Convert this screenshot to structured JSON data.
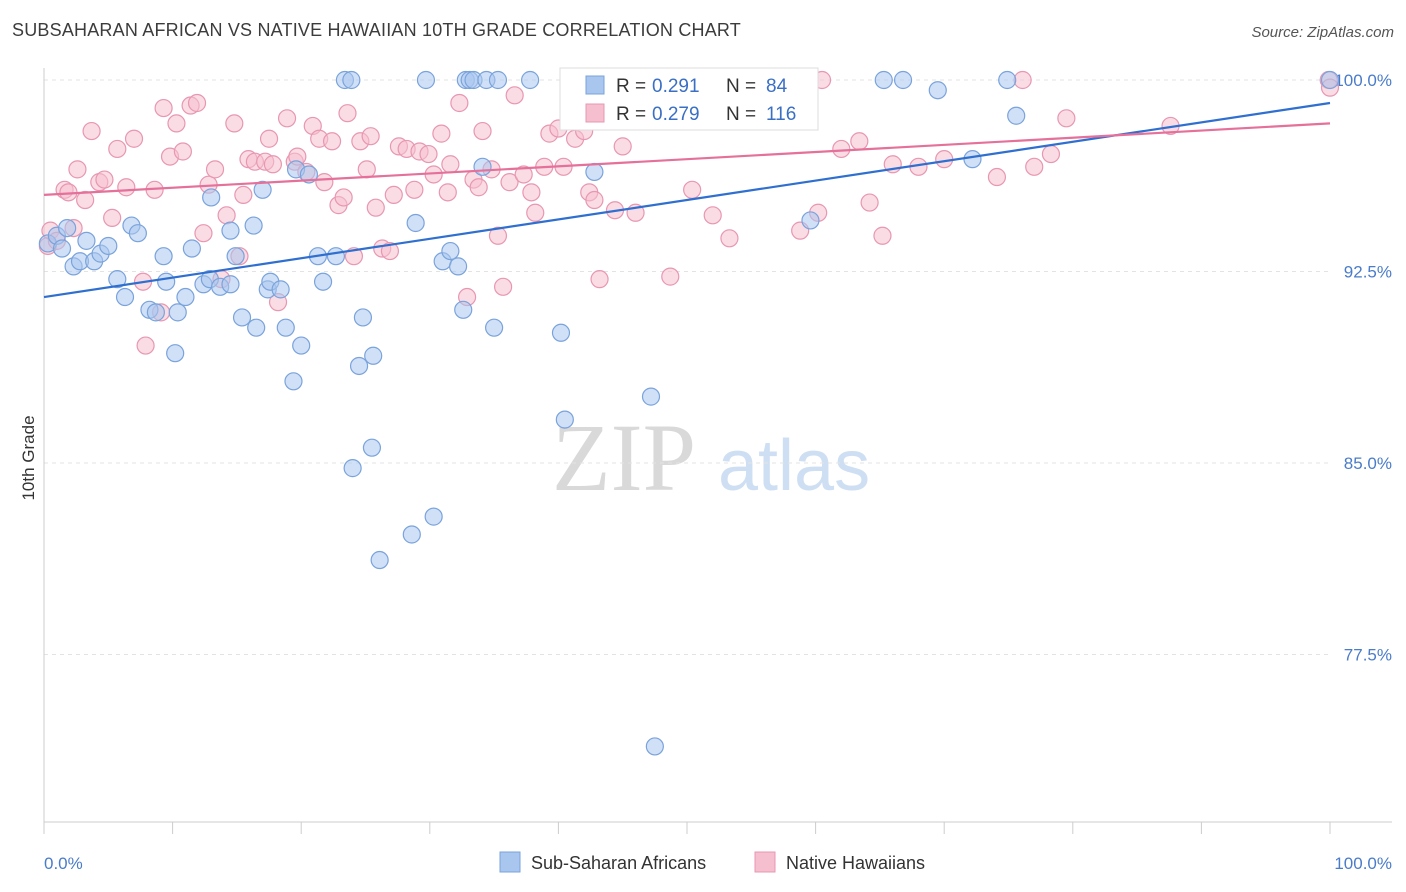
{
  "header": {
    "title": "SUBSAHARAN AFRICAN VS NATIVE HAWAIIAN 10TH GRADE CORRELATION CHART",
    "source": "Source: ZipAtlas.com"
  },
  "watermark": {
    "zip": "ZIP",
    "atlas": "atlas"
  },
  "legend": {
    "r_label": "R =",
    "n_label": "N =",
    "series_a": {
      "r": "0.291",
      "n": "84"
    },
    "series_b": {
      "r": "0.279",
      "n": "116"
    }
  },
  "bottom_legend": {
    "a": "Sub-Saharan Africans",
    "b": "Native Hawaiians"
  },
  "colors": {
    "blue_fill": "#a9c6ee",
    "blue_stroke": "#7aa3dc",
    "blue_line": "#2f6fd0",
    "pink_fill": "#f5bfd0",
    "pink_stroke": "#e897b1",
    "pink_line": "#e5709a",
    "tick_text": "#4a7cc9",
    "grid": "#e3e3e3"
  },
  "chart_data": {
    "type": "scatter",
    "title": "SUBSAHARAN AFRICAN VS NATIVE HAWAIIAN 10TH GRADE CORRELATION CHART",
    "xlabel": "",
    "ylabel": "10th Grade",
    "xlim": [
      0,
      100
    ],
    "ylim": [
      71.0,
      101.5
    ],
    "x_tick_labels": [
      "0.0%",
      "100.0%"
    ],
    "y_ticks": [
      77.5,
      85.0,
      92.5,
      100.0
    ],
    "y_tick_labels": [
      "77.5%",
      "85.0%",
      "92.5%",
      "100.0%"
    ],
    "grid": true,
    "legend_position": "top-center",
    "series": [
      {
        "name": "Sub-Saharan Africans",
        "r": 0.291,
        "n": 84,
        "trend": [
          [
            0,
            91.5
          ],
          [
            100,
            99.1
          ]
        ],
        "points": [
          [
            0.3,
            93.6
          ],
          [
            1.0,
            93.9
          ],
          [
            1.4,
            93.4
          ],
          [
            1.8,
            94.2
          ],
          [
            2.3,
            92.7
          ],
          [
            2.8,
            92.9
          ],
          [
            3.3,
            93.7
          ],
          [
            3.9,
            92.9
          ],
          [
            4.4,
            93.2
          ],
          [
            5.0,
            93.5
          ],
          [
            5.7,
            92.2
          ],
          [
            6.3,
            91.5
          ],
          [
            6.8,
            94.3
          ],
          [
            7.3,
            94.0
          ],
          [
            8.2,
            91.0
          ],
          [
            8.7,
            90.9
          ],
          [
            9.3,
            93.1
          ],
          [
            9.5,
            92.1
          ],
          [
            10.4,
            90.9
          ],
          [
            10.2,
            89.3
          ],
          [
            11.0,
            91.5
          ],
          [
            11.5,
            93.4
          ],
          [
            12.4,
            92.0
          ],
          [
            12.9,
            92.2
          ],
          [
            13.0,
            95.4
          ],
          [
            13.7,
            91.9
          ],
          [
            14.5,
            92.0
          ],
          [
            14.5,
            94.1
          ],
          [
            14.9,
            93.1
          ],
          [
            15.4,
            90.7
          ],
          [
            16.3,
            94.3
          ],
          [
            16.5,
            90.3
          ],
          [
            17.0,
            95.7
          ],
          [
            17.4,
            91.8
          ],
          [
            17.6,
            92.1
          ],
          [
            18.4,
            91.8
          ],
          [
            18.8,
            90.3
          ],
          [
            19.4,
            88.2
          ],
          [
            19.6,
            96.5
          ],
          [
            20.0,
            89.6
          ],
          [
            20.6,
            96.3
          ],
          [
            21.3,
            93.1
          ],
          [
            21.7,
            92.1
          ],
          [
            22.7,
            93.1
          ],
          [
            23.4,
            100.0
          ],
          [
            23.9,
            100.0
          ],
          [
            24.0,
            84.8
          ],
          [
            24.5,
            88.8
          ],
          [
            24.8,
            90.7
          ],
          [
            25.5,
            85.6
          ],
          [
            25.6,
            89.2
          ],
          [
            26.1,
            81.2
          ],
          [
            28.6,
            82.2
          ],
          [
            28.9,
            94.4
          ],
          [
            29.7,
            100.0
          ],
          [
            30.3,
            82.9
          ],
          [
            31.0,
            92.9
          ],
          [
            31.6,
            93.3
          ],
          [
            32.2,
            92.7
          ],
          [
            32.6,
            91.0
          ],
          [
            32.8,
            100.0
          ],
          [
            33.1,
            100.0
          ],
          [
            33.4,
            100.0
          ],
          [
            34.1,
            96.6
          ],
          [
            34.4,
            100.0
          ],
          [
            35.0,
            90.3
          ],
          [
            35.3,
            100.0
          ],
          [
            37.8,
            100.0
          ],
          [
            40.2,
            90.1
          ],
          [
            40.5,
            86.7
          ],
          [
            42.5,
            99.9
          ],
          [
            42.8,
            96.4
          ],
          [
            46.0,
            100.0
          ],
          [
            47.2,
            87.6
          ],
          [
            47.5,
            73.9
          ],
          [
            55.2,
            99.2
          ],
          [
            59.6,
            94.5
          ],
          [
            65.3,
            100.0
          ],
          [
            66.8,
            100.0
          ],
          [
            69.5,
            99.6
          ],
          [
            72.2,
            96.9
          ],
          [
            74.9,
            100.0
          ],
          [
            75.6,
            98.6
          ],
          [
            100.0,
            100.0
          ]
        ]
      },
      {
        "name": "Native Hawaiians",
        "r": 0.279,
        "n": 116,
        "trend": [
          [
            0,
            95.5
          ],
          [
            100,
            98.3
          ]
        ],
        "points": [
          [
            0.3,
            93.5
          ],
          [
            0.5,
            94.1
          ],
          [
            1.0,
            93.7
          ],
          [
            1.6,
            95.7
          ],
          [
            1.9,
            95.6
          ],
          [
            2.3,
            94.2
          ],
          [
            2.6,
            96.5
          ],
          [
            3.2,
            95.3
          ],
          [
            3.7,
            98.0
          ],
          [
            4.3,
            96.0
          ],
          [
            4.7,
            96.1
          ],
          [
            5.3,
            94.6
          ],
          [
            5.7,
            97.3
          ],
          [
            6.4,
            95.8
          ],
          [
            7.0,
            97.7
          ],
          [
            7.7,
            92.1
          ],
          [
            7.9,
            89.6
          ],
          [
            8.6,
            95.7
          ],
          [
            9.1,
            90.9
          ],
          [
            9.3,
            98.9
          ],
          [
            9.8,
            97.0
          ],
          [
            10.3,
            98.3
          ],
          [
            10.8,
            97.2
          ],
          [
            11.4,
            99.0
          ],
          [
            11.9,
            99.1
          ],
          [
            12.4,
            94.0
          ],
          [
            12.8,
            95.9
          ],
          [
            13.3,
            96.5
          ],
          [
            13.8,
            92.2
          ],
          [
            14.2,
            94.7
          ],
          [
            14.8,
            98.3
          ],
          [
            15.2,
            93.1
          ],
          [
            15.5,
            95.5
          ],
          [
            15.9,
            96.9
          ],
          [
            16.4,
            96.8
          ],
          [
            17.2,
            96.8
          ],
          [
            17.5,
            97.7
          ],
          [
            17.8,
            96.7
          ],
          [
            18.2,
            91.3
          ],
          [
            18.9,
            98.5
          ],
          [
            19.5,
            96.8
          ],
          [
            19.7,
            97.0
          ],
          [
            20.4,
            96.4
          ],
          [
            20.9,
            98.2
          ],
          [
            21.4,
            97.7
          ],
          [
            21.8,
            96.0
          ],
          [
            22.4,
            97.6
          ],
          [
            22.9,
            95.1
          ],
          [
            23.3,
            95.4
          ],
          [
            23.6,
            98.7
          ],
          [
            24.1,
            93.1
          ],
          [
            24.6,
            97.6
          ],
          [
            25.1,
            96.5
          ],
          [
            25.4,
            97.8
          ],
          [
            25.8,
            95.0
          ],
          [
            26.3,
            93.4
          ],
          [
            26.9,
            93.3
          ],
          [
            27.2,
            95.5
          ],
          [
            27.6,
            97.4
          ],
          [
            28.2,
            97.3
          ],
          [
            28.8,
            95.7
          ],
          [
            29.2,
            97.2
          ],
          [
            29.9,
            97.1
          ],
          [
            30.3,
            96.3
          ],
          [
            30.9,
            97.9
          ],
          [
            31.4,
            95.6
          ],
          [
            31.6,
            96.7
          ],
          [
            32.3,
            99.1
          ],
          [
            32.9,
            91.5
          ],
          [
            33.4,
            96.1
          ],
          [
            33.8,
            95.8
          ],
          [
            34.1,
            98.0
          ],
          [
            34.8,
            96.5
          ],
          [
            35.3,
            93.9
          ],
          [
            35.7,
            91.9
          ],
          [
            36.2,
            96.0
          ],
          [
            36.6,
            99.4
          ],
          [
            37.3,
            96.3
          ],
          [
            37.9,
            95.6
          ],
          [
            38.2,
            94.8
          ],
          [
            38.9,
            96.6
          ],
          [
            39.3,
            97.9
          ],
          [
            40.0,
            98.1
          ],
          [
            40.4,
            96.6
          ],
          [
            41.3,
            97.7
          ],
          [
            42.0,
            98.0
          ],
          [
            42.4,
            95.6
          ],
          [
            42.8,
            95.3
          ],
          [
            43.2,
            92.2
          ],
          [
            44.4,
            94.9
          ],
          [
            45.0,
            97.4
          ],
          [
            46.0,
            94.8
          ],
          [
            46.5,
            100.0
          ],
          [
            48.7,
            92.3
          ],
          [
            50.4,
            95.7
          ],
          [
            52.0,
            94.7
          ],
          [
            53.3,
            93.8
          ],
          [
            55.7,
            100.0
          ],
          [
            58.8,
            94.1
          ],
          [
            60.2,
            94.8
          ],
          [
            60.5,
            100.0
          ],
          [
            62.0,
            97.3
          ],
          [
            63.4,
            97.6
          ],
          [
            64.2,
            95.2
          ],
          [
            65.2,
            93.9
          ],
          [
            66.0,
            96.7
          ],
          [
            68.0,
            96.6
          ],
          [
            70.0,
            96.9
          ],
          [
            74.1,
            96.2
          ],
          [
            76.1,
            100.0
          ],
          [
            77.0,
            96.6
          ],
          [
            78.3,
            97.1
          ],
          [
            79.5,
            98.5
          ],
          [
            87.6,
            98.2
          ],
          [
            99.9,
            100.0
          ],
          [
            100.0,
            99.7
          ]
        ]
      }
    ]
  }
}
